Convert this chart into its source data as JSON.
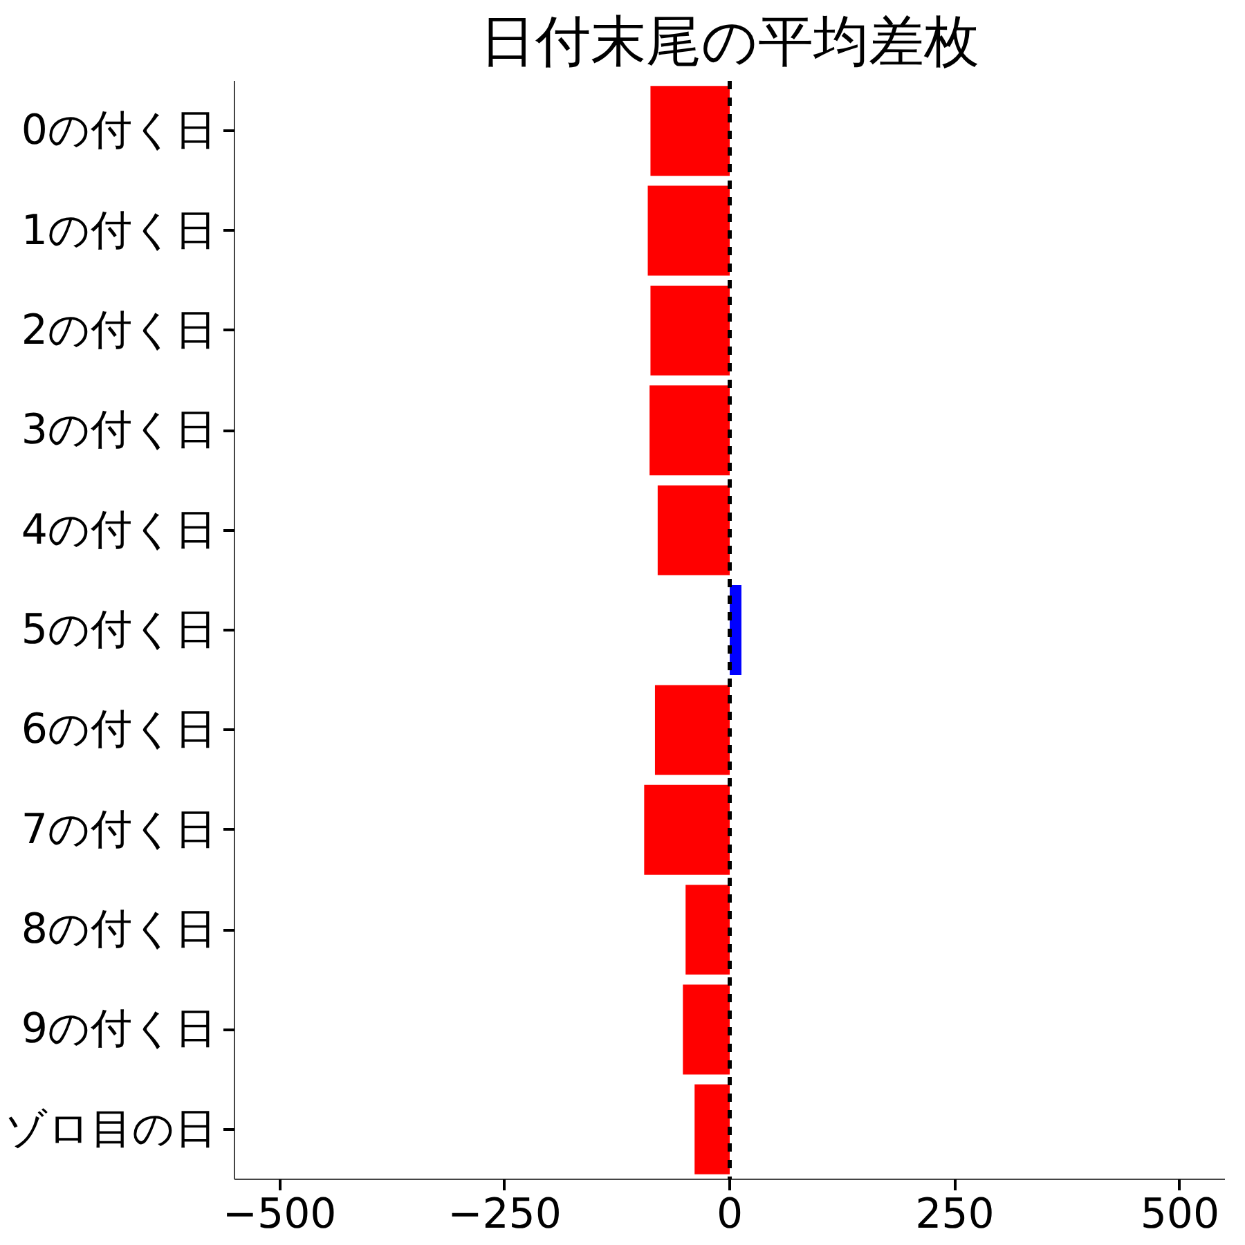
{
  "chart_data": {
    "type": "bar",
    "orientation": "horizontal",
    "title": "日付末尾の平均差枚",
    "categories": [
      "0の付く日",
      "1の付く日",
      "2の付く日",
      "3の付く日",
      "4の付く日",
      "5の付く日",
      "6の付く日",
      "7の付く日",
      "8の付く日",
      "9の付く日",
      "ゾロ目の日"
    ],
    "values": [
      -88,
      -91,
      -88,
      -89,
      -80,
      13,
      -83,
      -95,
      -49,
      -52,
      -39
    ],
    "colors": [
      "#ff0000",
      "#ff0000",
      "#ff0000",
      "#ff0000",
      "#ff0000",
      "#0000ff",
      "#ff0000",
      "#ff0000",
      "#ff0000",
      "#ff0000",
      "#ff0000"
    ],
    "xlim": [
      -550,
      550
    ],
    "xticks": [
      -500,
      -250,
      0,
      250,
      500
    ],
    "ref_lines": [
      {
        "axis": "x",
        "value": 0,
        "color": "#000000",
        "line_style": "dashed"
      }
    ],
    "grid": false
  }
}
